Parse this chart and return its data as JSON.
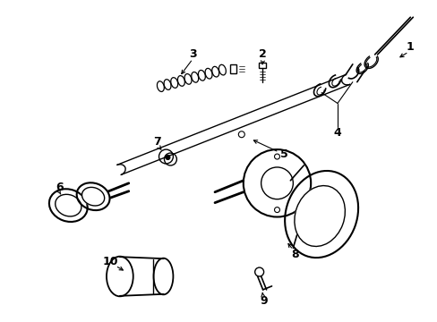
{
  "background_color": "#ffffff",
  "line_color": "#000000",
  "figsize": [
    4.89,
    3.6
  ],
  "dpi": 100,
  "font_size": 9
}
